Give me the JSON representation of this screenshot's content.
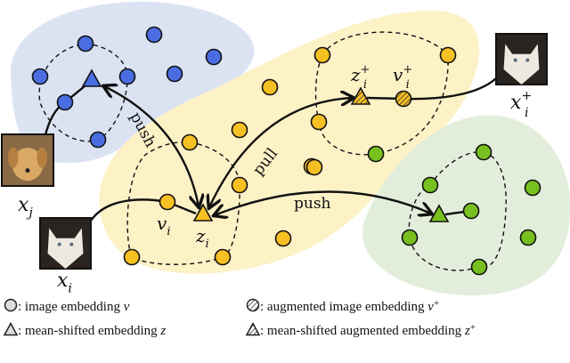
{
  "colors": {
    "blue_region": "#dbe3f3",
    "yellow_region": "#fdf1c6",
    "green_region": "#e2eedb",
    "blue_point": "#4a6ee2",
    "yellow_point": "#f6c023",
    "green_point": "#78c020"
  },
  "images": {
    "x_j": {
      "base": "x",
      "sub": "j",
      "content": "dog-photo"
    },
    "x_i": {
      "base": "x",
      "sub": "i",
      "content": "white-cat-photo"
    },
    "x_i_plus": {
      "base": "x",
      "sub": "i",
      "sup": "+",
      "content": "augmented-white-cat-photo"
    }
  },
  "labels": {
    "v_i": {
      "base": "v",
      "sub": "i"
    },
    "z_i": {
      "base": "z",
      "sub": "i"
    },
    "z_i_plus": {
      "base": "z",
      "sub": "i",
      "sup": "+"
    },
    "v_i_plus": {
      "base": "v",
      "sub": "i",
      "sup": "+"
    }
  },
  "arrows": {
    "push_blue": "push",
    "pull": "pull",
    "push_green": "push"
  },
  "legend": [
    {
      "icon": "circle-icon",
      "text": ": image embedding ",
      "var": "v",
      "sup": ""
    },
    {
      "icon": "hatched-circle-icon",
      "text": ": augmented image embedding ",
      "var": "v",
      "sup": "+"
    },
    {
      "icon": "triangle-icon",
      "text": ": mean-shifted embedding ",
      "var": "z",
      "sup": ""
    },
    {
      "icon": "hatched-triangle-icon",
      "text": ": mean-shifted augmented embedding ",
      "var": "z",
      "sup": "+"
    }
  ]
}
